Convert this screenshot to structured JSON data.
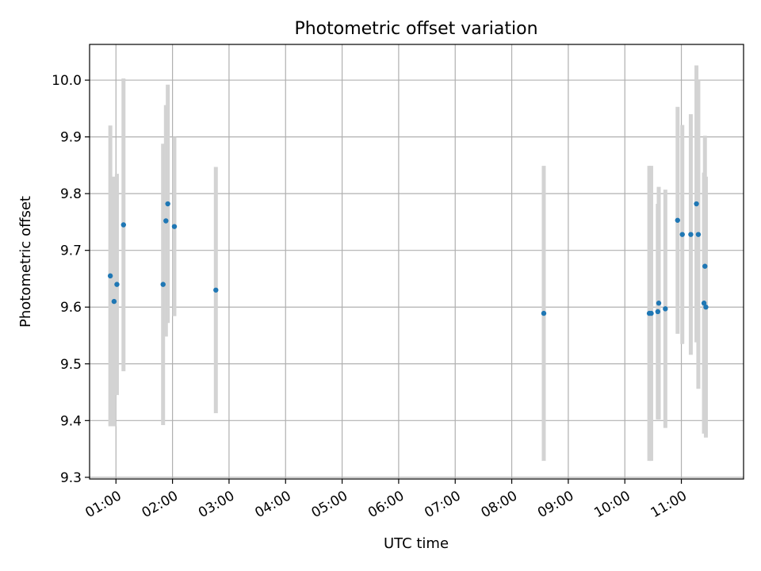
{
  "chart_data": {
    "type": "scatter",
    "title": "Photometric offset variation",
    "xlabel": "UTC time",
    "ylabel": "Photometric offset",
    "x_ticks": [
      "01:00",
      "02:00",
      "03:00",
      "04:00",
      "05:00",
      "06:00",
      "07:00",
      "08:00",
      "09:00",
      "10:00",
      "11:00"
    ],
    "y_ticks": [
      "9.3",
      "9.4",
      "9.5",
      "9.6",
      "9.7",
      "9.8",
      "9.9",
      "10.0"
    ],
    "xlim": [
      "00:32",
      "12:06"
    ],
    "ylim": [
      9.297,
      10.063
    ],
    "grid": true,
    "colors": {
      "points": "#1f77b4",
      "errorbars": "#d3d3d3",
      "grid": "#b0b0b0"
    },
    "points": [
      {
        "t": "00:54",
        "y": 9.655,
        "err": 0.265
      },
      {
        "t": "00:58",
        "y": 9.61,
        "err": 0.22
      },
      {
        "t": "01:01",
        "y": 9.64,
        "err": 0.195
      },
      {
        "t": "01:08",
        "y": 9.745,
        "err": 0.258
      },
      {
        "t": "01:50",
        "y": 9.64,
        "err": 0.248
      },
      {
        "t": "01:53",
        "y": 9.752,
        "err": 0.204
      },
      {
        "t": "01:55",
        "y": 9.782,
        "err": 0.21
      },
      {
        "t": "02:02",
        "y": 9.742,
        "err": 0.158
      },
      {
        "t": "02:46",
        "y": 9.63,
        "err": 0.217
      },
      {
        "t": "08:34",
        "y": 9.589,
        "err": 0.26
      },
      {
        "t": "10:26",
        "y": 9.589,
        "err": 0.26
      },
      {
        "t": "10:28",
        "y": 9.589,
        "err": 0.26
      },
      {
        "t": "10:35",
        "y": 9.592,
        "err": 0.19
      },
      {
        "t": "10:36",
        "y": 9.607,
        "err": 0.205
      },
      {
        "t": "10:43",
        "y": 9.597,
        "err": 0.21
      },
      {
        "t": "10:56",
        "y": 9.753,
        "err": 0.2
      },
      {
        "t": "11:01",
        "y": 9.728,
        "err": 0.193
      },
      {
        "t": "11:10",
        "y": 9.728,
        "err": 0.212
      },
      {
        "t": "11:16",
        "y": 9.782,
        "err": 0.244
      },
      {
        "t": "11:18",
        "y": 9.728,
        "err": 0.272
      },
      {
        "t": "11:24",
        "y": 9.607,
        "err": 0.23
      },
      {
        "t": "11:25",
        "y": 9.672,
        "err": 0.23
      },
      {
        "t": "11:26",
        "y": 9.6,
        "err": 0.23
      }
    ]
  }
}
